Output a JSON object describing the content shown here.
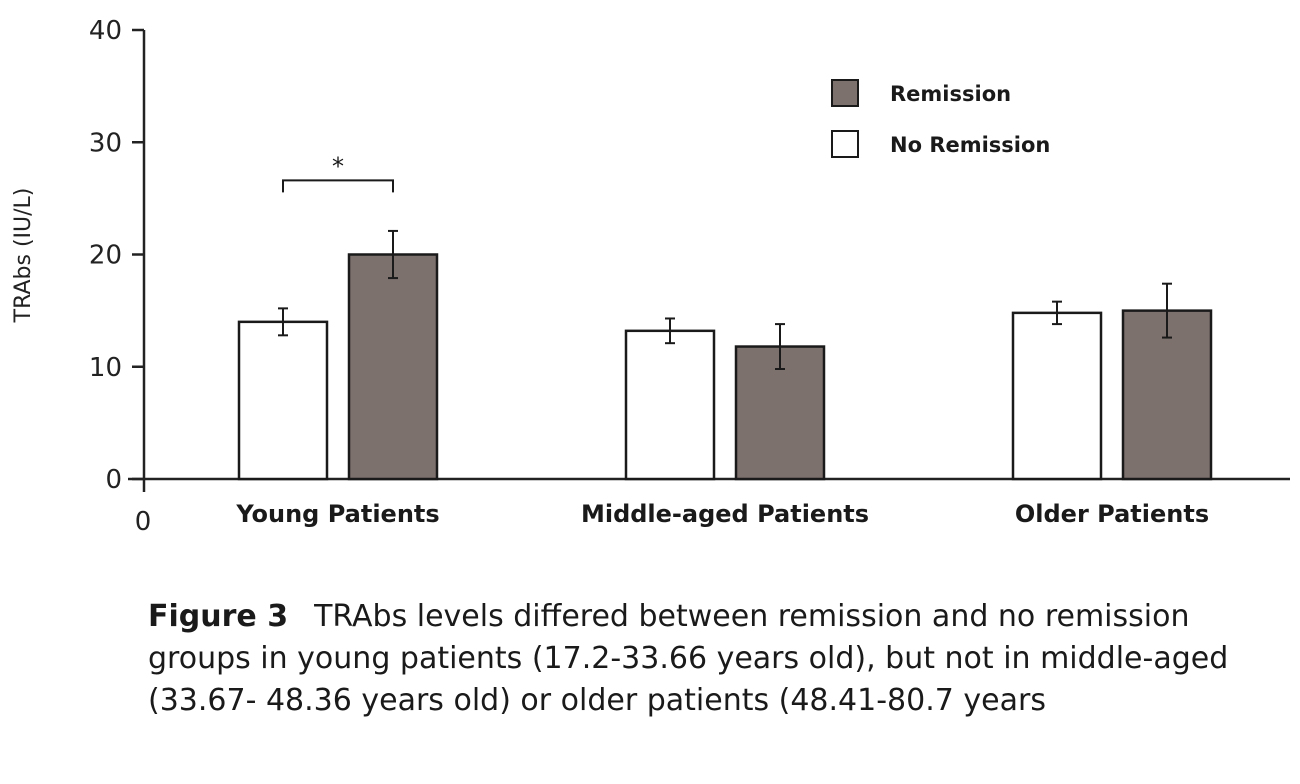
{
  "chart_data": {
    "type": "bar",
    "categories": [
      "Young Patients",
      "Middle-aged Patients",
      "Older Patients"
    ],
    "series": [
      {
        "name": "No Remission",
        "values": [
          14.0,
          13.2,
          14.8
        ],
        "errors": [
          1.2,
          1.1,
          1.0
        ],
        "color": "#ffffff"
      },
      {
        "name": "Remission",
        "values": [
          20.0,
          11.8,
          15.0
        ],
        "errors": [
          2.1,
          2.0,
          2.4
        ],
        "color": "#7d716e"
      }
    ],
    "xlabel": "",
    "ylabel": "TRAbs (IU/L)",
    "ylim": [
      0,
      40
    ],
    "yticks": [
      "0",
      "10",
      "20",
      "30",
      "40"
    ],
    "x_origin_label": "0",
    "legend": {
      "placement": "top-right",
      "entries": [
        {
          "label": "Remission",
          "color": "#7d716e"
        },
        {
          "label": "No Remission",
          "color": "#ffffff"
        }
      ]
    },
    "annotations": [
      {
        "text": "*",
        "category": "Young Patients",
        "between_series": [
          "No Remission",
          "Remission"
        ]
      }
    ],
    "grid": false
  },
  "caption": {
    "label": "Figure 3",
    "text": "TRAbs levels differed between remission and no remission groups in young patients (17.2-33.66 years old), but not in middle-aged (33.67- 48.36 years old) or older patients (48.41-80.7 years"
  }
}
